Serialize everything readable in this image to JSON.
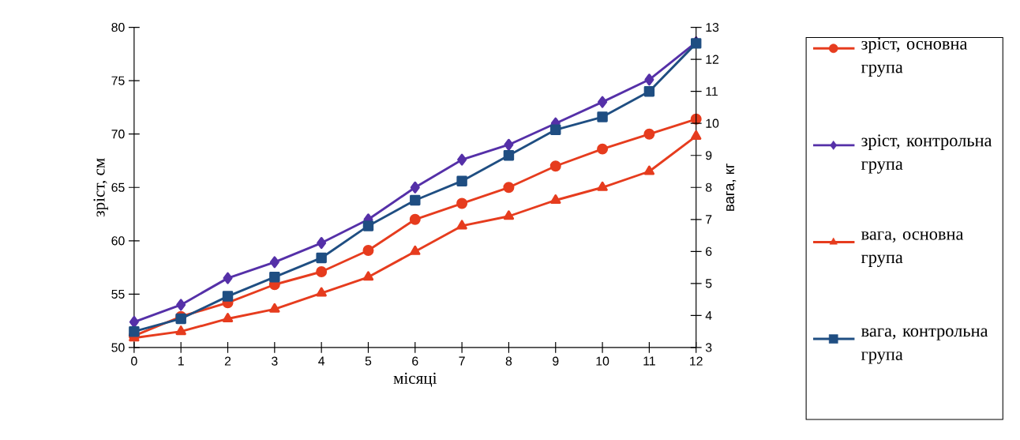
{
  "chart_data": {
    "type": "line",
    "xlabel": "місяці",
    "ylabel": "зріст, см",
    "y2label": "вага, кг",
    "x": [
      0,
      1,
      2,
      3,
      4,
      5,
      6,
      7,
      8,
      9,
      10,
      11,
      12
    ],
    "xlim": [
      0,
      12
    ],
    "xticks": [
      0,
      1,
      2,
      3,
      4,
      5,
      6,
      7,
      8,
      9,
      10,
      11,
      12
    ],
    "ylim": [
      50,
      80
    ],
    "yticks": [
      50,
      55,
      60,
      65,
      70,
      75,
      80
    ],
    "y2lim": [
      3,
      13
    ],
    "y2ticks": [
      3,
      4,
      5,
      6,
      7,
      8,
      9,
      10,
      11,
      12,
      13
    ],
    "legend": "right",
    "grid": false,
    "line_style": "solid",
    "series": [
      {
        "name": "зріст, основна група",
        "color": "#e63c1e",
        "marker": "circle",
        "values": [
          51.1,
          52.9,
          54.2,
          55.9,
          57.1,
          59.1,
          62.0,
          63.5,
          65.0,
          67.0,
          68.6,
          70.0,
          71.4
        ]
      },
      {
        "name": "зріст, контрольна група",
        "color": "#5530a8",
        "marker": "diamond",
        "values": [
          52.4,
          54.0,
          56.5,
          58.0,
          59.8,
          62.0,
          65.0,
          67.6,
          69.0,
          71.0,
          73.0,
          75.1,
          78.6
        ]
      },
      {
        "name": "вага, основна група",
        "color": "#e63c1e",
        "marker": "triangle",
        "axis": "y2",
        "values": [
          3.3,
          3.5,
          3.9,
          4.2,
          4.7,
          5.2,
          6.0,
          6.8,
          7.1,
          7.6,
          8.0,
          8.5,
          9.6
        ]
      },
      {
        "name": "вага, контрольна група",
        "color": "#1f4e82",
        "marker": "square",
        "axis": "y2",
        "values": [
          3.5,
          3.9,
          4.6,
          5.2,
          5.8,
          6.8,
          7.6,
          8.2,
          9.0,
          9.8,
          10.2,
          11.0,
          12.5
        ]
      }
    ]
  }
}
